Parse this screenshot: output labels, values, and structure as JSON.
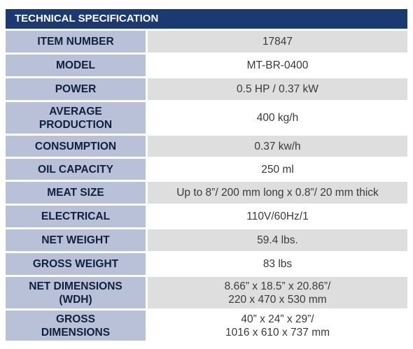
{
  "header": {
    "title": "TECHNICAL SPECIFICATION"
  },
  "rows": [
    {
      "label": "ITEM NUMBER",
      "value": "17847"
    },
    {
      "label": "MODEL",
      "value": "MT-BR-0400"
    },
    {
      "label": "POWER",
      "value": "0.5 HP / 0.37 kW"
    },
    {
      "label": "AVERAGE\nPRODUCTION",
      "value": "400 kg/h"
    },
    {
      "label": "CONSUMPTION",
      "value": "0.37 kw/h"
    },
    {
      "label": "OIL CAPACITY",
      "value": "250 ml"
    },
    {
      "label": "MEAT SIZE",
      "value": "Up to 8”/ 200 mm long x  0.8”/ 20 mm thick"
    },
    {
      "label": "ELECTRICAL",
      "value": "110V/60Hz/1"
    },
    {
      "label": "NET WEIGHT",
      "value": "59.4 lbs."
    },
    {
      "label": "GROSS WEIGHT",
      "value": "83 lbs"
    },
    {
      "label": "NET DIMENSIONS\n(WDH)",
      "value": "8.66” x 18.5” x 20.86”/\n220 x 470  x 530 mm"
    },
    {
      "label": "GROSS\nDIMENSIONS",
      "value": "40” x 24” x 29”/\n1016 x 610 x 737 mm"
    }
  ],
  "colors": {
    "header_bg": "#1b3a73",
    "label_bg": "#b8c1d7",
    "value_bg_primary": "#dedede",
    "value_bg_alternate": "#ffffff"
  }
}
